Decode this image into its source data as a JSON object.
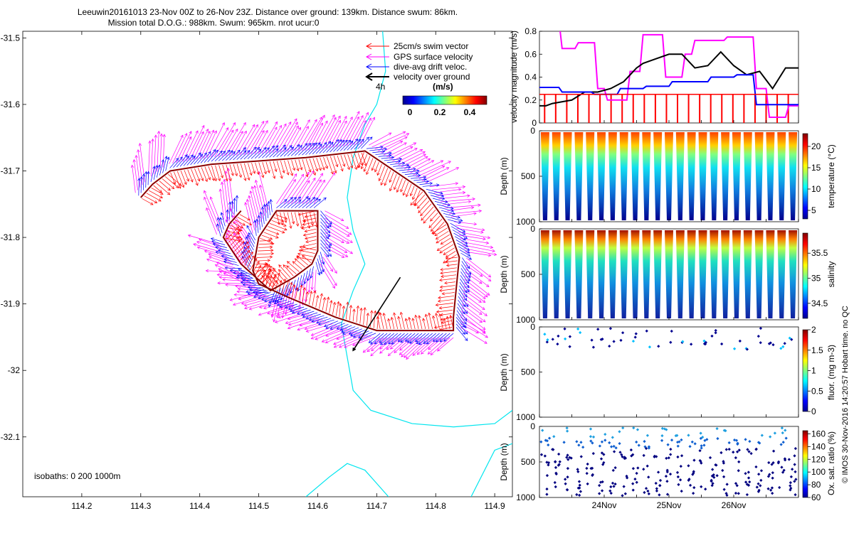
{
  "title": {
    "line1": "Leeuwin20161013 23-Nov 00Z to 26-Nov 23Z. Distance over ground: 139km. Distance swum: 86km.",
    "line2": "Mission total D.O.G.: 988km. Swum: 965km. nrot ucur:0"
  },
  "side_label": "© IMOS 30-Nov-2016 14:20:57 Hobart time. no QC",
  "isobaths_label": "isobaths: 0   200  1000m",
  "colors": {
    "swim": "#ff0000",
    "gps": "#ff00ff",
    "dive_avg": "#0000ff",
    "ground": "#000000",
    "isobath": "#00e5ee",
    "track": "#8b0000"
  },
  "chart_data": [
    {
      "type": "scatter",
      "name": "map",
      "xlim": [
        114.1,
        114.93
      ],
      "ylim": [
        -32.19,
        -31.49
      ],
      "xticks": [
        "114.2",
        "114.3",
        "114.4",
        "114.5",
        "114.6",
        "114.7",
        "114.8",
        "114.9"
      ],
      "yticks": [
        "-31.5",
        "-31.6",
        "-31.7",
        "-31.8",
        "-31.9",
        "-32",
        "-32.1"
      ],
      "legend": {
        "placement": "top-right",
        "entries": [
          "25cm/s swim vector",
          "GPS surface velocity",
          "dive-avg drift veloc.",
          "velocity over ground"
        ],
        "marker_label": "4h"
      },
      "colorbar": {
        "label": "(m/s)",
        "ticks": [
          "0",
          "0.2",
          "0.4"
        ],
        "range": [
          0,
          0.5
        ]
      },
      "track": [
        [
          114.3,
          -31.74
        ],
        [
          114.32,
          -31.72
        ],
        [
          114.35,
          -31.7
        ],
        [
          114.42,
          -31.69
        ],
        [
          114.5,
          -31.685
        ],
        [
          114.58,
          -31.68
        ],
        [
          114.68,
          -31.67
        ],
        [
          114.78,
          -31.73
        ],
        [
          114.82,
          -31.78
        ],
        [
          114.84,
          -31.83
        ],
        [
          114.83,
          -31.92
        ],
        [
          114.83,
          -31.94
        ],
        [
          114.7,
          -31.94
        ],
        [
          114.63,
          -31.92
        ],
        [
          114.55,
          -31.89
        ],
        [
          114.5,
          -31.87
        ],
        [
          114.49,
          -31.85
        ],
        [
          114.5,
          -31.8
        ],
        [
          114.53,
          -31.76
        ],
        [
          114.58,
          -31.76
        ],
        [
          114.6,
          -31.76
        ],
        [
          114.6,
          -31.82
        ],
        [
          114.59,
          -31.84
        ],
        [
          114.56,
          -31.86
        ],
        [
          114.52,
          -31.88
        ],
        [
          114.47,
          -31.84
        ],
        [
          114.44,
          -31.8
        ],
        [
          114.45,
          -31.78
        ],
        [
          114.47,
          -31.76
        ]
      ],
      "ground_arrow": [
        [
          114.74,
          -31.86
        ],
        [
          114.66,
          -31.97
        ]
      ]
    },
    {
      "type": "line",
      "name": "velocity",
      "ylabel": "velocity magnitude (m/s)",
      "ylim": [
        0,
        0.8
      ],
      "yticks": [
        "0",
        "0.2",
        "0.4",
        "0.6",
        "0.8"
      ],
      "x_range_days": [
        0,
        4
      ],
      "series": [
        {
          "color": "#ff00ff",
          "x": [
            0,
            0.3,
            0.35,
            0.55,
            0.6,
            0.85,
            0.9,
            1.0,
            1.05,
            1.35,
            1.4,
            1.55,
            1.6,
            1.9,
            1.95,
            2.2,
            2.25,
            2.35,
            2.4,
            2.85,
            2.9,
            3.3,
            3.35,
            3.5,
            3.55,
            3.8,
            3.85,
            4.0
          ],
          "values": [
            0.9,
            0.9,
            0.65,
            0.65,
            0.7,
            0.7,
            0.3,
            0.3,
            0.2,
            0.2,
            0.45,
            0.45,
            0.77,
            0.77,
            0.4,
            0.4,
            0.6,
            0.6,
            0.72,
            0.72,
            0.75,
            0.75,
            0.3,
            0.3,
            0.05,
            0.05,
            0.15,
            0.15
          ]
        },
        {
          "color": "#000000",
          "x": [
            0,
            0.1,
            0.2,
            0.3,
            0.5,
            0.7,
            0.9,
            1.1,
            1.3,
            1.4,
            1.5,
            1.6,
            1.8,
            2.0,
            2.2,
            2.4,
            2.6,
            2.8,
            3.0,
            3.2,
            3.4,
            3.6,
            3.8,
            4.0
          ],
          "values": [
            0.15,
            0.15,
            0.17,
            0.18,
            0.2,
            0.27,
            0.27,
            0.3,
            0.36,
            0.42,
            0.48,
            0.52,
            0.56,
            0.6,
            0.6,
            0.48,
            0.5,
            0.62,
            0.5,
            0.42,
            0.45,
            0.3,
            0.48,
            0.48
          ]
        },
        {
          "color": "#0000ff",
          "x": [
            0,
            0.3,
            0.35,
            0.8,
            0.85,
            1.2,
            1.25,
            1.6,
            1.65,
            2.0,
            2.05,
            2.6,
            2.65,
            3.0,
            3.05,
            3.3,
            3.35,
            4.0
          ],
          "values": [
            0.31,
            0.31,
            0.27,
            0.27,
            0.25,
            0.25,
            0.3,
            0.3,
            0.32,
            0.32,
            0.36,
            0.36,
            0.4,
            0.4,
            0.42,
            0.42,
            0.16,
            0.16
          ]
        },
        {
          "color": "#ff0000",
          "x": [
            0,
            4.0
          ],
          "values": [
            0.25,
            0.25
          ]
        }
      ]
    },
    {
      "type": "heatmap",
      "name": "temperature",
      "ylabel": "Depth (m)",
      "colorbar_label": "temperature (°C)",
      "ylim": [
        1000,
        0
      ],
      "yticks": [
        "0",
        "500",
        "1000"
      ],
      "colorbar_ticks": [
        "5",
        "10",
        "15",
        "20"
      ],
      "colorbar_range": [
        3,
        23
      ],
      "surface_value": 22,
      "deep_value": 4,
      "dives": 23
    },
    {
      "type": "heatmap",
      "name": "salinity",
      "ylabel": "Depth (m)",
      "colorbar_label": "salinity",
      "ylim": [
        1000,
        0
      ],
      "yticks": [
        "0",
        "500",
        "1000"
      ],
      "colorbar_ticks": [
        "34.5",
        "35",
        "35.5"
      ],
      "colorbar_range": [
        34.2,
        35.9
      ],
      "surface_value": 35.8,
      "deep_value": 34.35,
      "dives": 23
    },
    {
      "type": "scatter",
      "name": "fluorescence",
      "ylabel": "Depth (m)",
      "colorbar_label": "fluor. (mg m-3)",
      "ylim": [
        1000,
        0
      ],
      "yticks": [
        "0",
        "500",
        "1000"
      ],
      "colorbar_ticks": [
        "0",
        "0.5",
        "1",
        "1.5",
        "2"
      ],
      "colorbar_range": [
        0,
        2
      ]
    },
    {
      "type": "scatter",
      "name": "oxygen",
      "ylabel": "Depth (m)",
      "colorbar_label": "Ox. sat. ratio (%)",
      "ylim": [
        1000,
        0
      ],
      "yticks": [
        "0",
        "500",
        "1000"
      ],
      "colorbar_ticks": [
        "60",
        "80",
        "100",
        "120",
        "140",
        "160"
      ],
      "colorbar_range": [
        60,
        165
      ],
      "xticks": [
        "24Nov",
        "25Nov",
        "26Nov"
      ],
      "x_range_days": [
        0,
        4
      ]
    }
  ]
}
